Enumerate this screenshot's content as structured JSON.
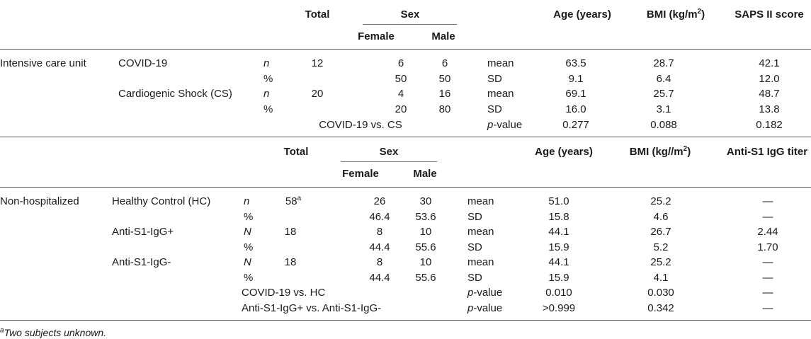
{
  "table1": {
    "headers": {
      "total": "Total",
      "sex": "Sex",
      "female": "Female",
      "male": "Male",
      "age": "Age (years)",
      "bmi_prefix": "BMI (kg/m",
      "bmi_sup": "2",
      "bmi_suffix": ")",
      "score": "SAPS II score"
    },
    "section": "Intensive care unit",
    "rows": [
      {
        "group": "COVID-19",
        "stat": "n",
        "total": "12",
        "female": "6",
        "male": "6",
        "measure": "mean",
        "age": "63.5",
        "bmi": "28.7",
        "score": "42.1"
      },
      {
        "group": "",
        "stat": "%",
        "total": "",
        "female": "50",
        "male": "50",
        "measure": "SD",
        "age": "9.1",
        "bmi": "6.4",
        "score": "12.0"
      },
      {
        "group": "Cardiogenic Shock (CS)",
        "stat": "n",
        "total": "20",
        "female": "4",
        "male": "16",
        "measure": "mean",
        "age": "69.1",
        "bmi": "25.7",
        "score": "48.7"
      },
      {
        "group": "",
        "stat": "%",
        "total": "",
        "female": "20",
        "male": "80",
        "measure": "SD",
        "age": "16.0",
        "bmi": "3.1",
        "score": "13.8"
      }
    ],
    "comparison": {
      "label": "COVID-19 vs. CS",
      "measure_italic": "p",
      "measure_rest": "-value",
      "age": "0.277",
      "bmi": "0.088",
      "score": "0.182"
    }
  },
  "table2": {
    "headers": {
      "total": "Total",
      "sex": "Sex",
      "female": "Female",
      "male": "Male",
      "age": "Age (years)",
      "bmi_prefix": "BMI (kg//m",
      "bmi_sup": "2",
      "bmi_suffix": ")",
      "titer": "Anti-S1 IgG titer"
    },
    "section": "Non-hospitalized",
    "rows": [
      {
        "group": "Healthy Control (HC)",
        "stat": "n",
        "total": "58",
        "total_sup": "a",
        "female": "26",
        "male": "30",
        "measure": "mean",
        "age": "51.0",
        "bmi": "25.2",
        "titer": "—"
      },
      {
        "group": "",
        "stat": "%",
        "total": "",
        "female": "46.4",
        "male": "53.6",
        "measure": "SD",
        "age": "15.8",
        "bmi": "4.6",
        "titer": "—"
      },
      {
        "group": "Anti-S1-IgG+",
        "stat": "N",
        "total": "18",
        "female": "8",
        "male": "10",
        "measure": "mean",
        "age": "44.1",
        "bmi": "26.7",
        "titer": "2.44"
      },
      {
        "group": "",
        "stat": "%",
        "total": "",
        "female": "44.4",
        "male": "55.6",
        "measure": "SD",
        "age": "15.9",
        "bmi": "5.2",
        "titer": "1.70"
      },
      {
        "group": "Anti-S1-IgG-",
        "stat": "N",
        "total": "18",
        "female": "8",
        "male": "10",
        "measure": "mean",
        "age": "44.1",
        "bmi": "25.2",
        "titer": "—"
      },
      {
        "group": "",
        "stat": "%",
        "total": "",
        "female": "44.4",
        "male": "55.6",
        "measure": "SD",
        "age": "15.9",
        "bmi": "4.1",
        "titer": "—"
      }
    ],
    "comparisons": [
      {
        "label": "COVID-19 vs. HC",
        "measure_italic": "p",
        "measure_rest": "-value",
        "age": "0.010",
        "bmi": "0.030",
        "titer": "—"
      },
      {
        "label": "Anti-S1-IgG+ vs. Anti-S1-IgG-",
        "measure_italic": "p",
        "measure_rest": "-value",
        "age": ">0.999",
        "bmi": "0.342",
        "titer": "—"
      }
    ]
  },
  "footnote": {
    "marker": "a",
    "text": "Two subjects unknown."
  }
}
